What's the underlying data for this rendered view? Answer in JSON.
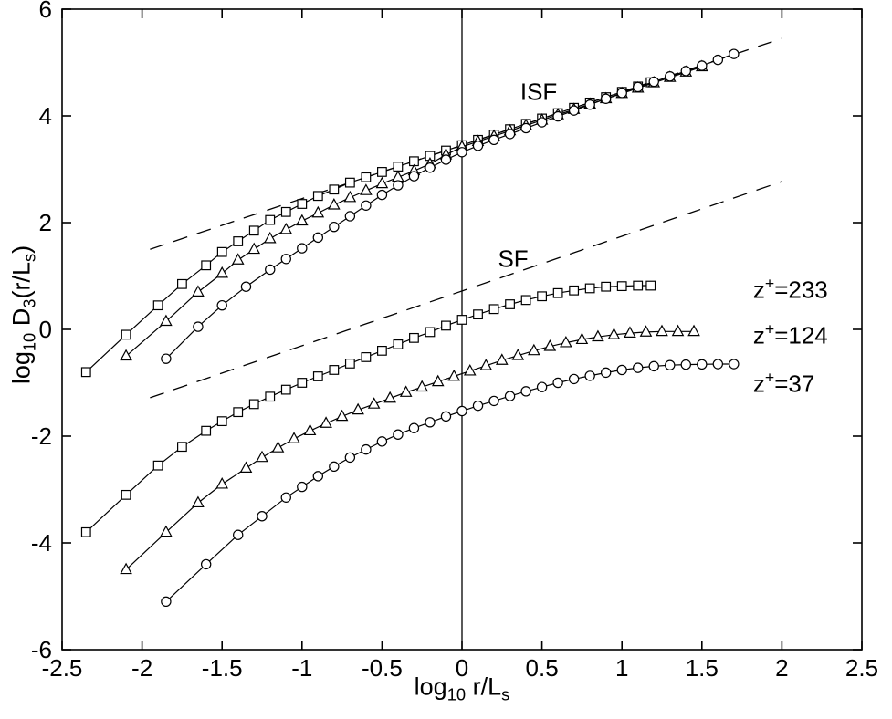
{
  "figure": {
    "background_color": "#ffffff",
    "axis_color": "#000000",
    "line_color": "#000000"
  },
  "chart_data": {
    "type": "line",
    "title": "",
    "xlabel_parts": {
      "t1": "log",
      "s1": "10",
      "t2": " r/L",
      "s2": "s"
    },
    "ylabel_parts": {
      "t1": "log",
      "s1": "10",
      "t2": " D",
      "s2": "3",
      "t3": "(r/L",
      "s3": "s",
      "t4": ")"
    },
    "xlim": [
      -2.5,
      2.5
    ],
    "ylim": [
      -6,
      6
    ],
    "xtick_values": [
      -2.5,
      -2,
      -1.5,
      -1,
      -0.5,
      0,
      0.5,
      1,
      1.5,
      2,
      2.5
    ],
    "xtick_labels": [
      "-2.5",
      "-2",
      "-1.5",
      "-1",
      "-0.5",
      "0",
      "0.5",
      "1",
      "1.5",
      "2",
      "2.5"
    ],
    "ytick_values": [
      -6,
      -4,
      -2,
      0,
      2,
      4,
      6
    ],
    "ytick_labels": [
      "-6",
      "-4",
      "-2",
      "0",
      "2",
      "4",
      "6"
    ],
    "grid": false,
    "legend_position": "none",
    "series": [
      {
        "name": "ISF z+=233",
        "group": "ISF",
        "marker": "square",
        "points": [
          [
            -2.35,
            -0.8
          ],
          [
            -2.1,
            -0.1
          ],
          [
            -1.9,
            0.45
          ],
          [
            -1.75,
            0.85
          ],
          [
            -1.6,
            1.2
          ],
          [
            -1.5,
            1.45
          ],
          [
            -1.4,
            1.65
          ],
          [
            -1.3,
            1.85
          ],
          [
            -1.2,
            2.05
          ],
          [
            -1.1,
            2.2
          ],
          [
            -1.0,
            2.35
          ],
          [
            -0.9,
            2.5
          ],
          [
            -0.8,
            2.62
          ],
          [
            -0.7,
            2.75
          ],
          [
            -0.6,
            2.85
          ],
          [
            -0.5,
            2.95
          ],
          [
            -0.4,
            3.05
          ],
          [
            -0.3,
            3.15
          ],
          [
            -0.2,
            3.25
          ],
          [
            -0.1,
            3.35
          ],
          [
            0.0,
            3.45
          ],
          [
            0.1,
            3.55
          ],
          [
            0.2,
            3.65
          ],
          [
            0.3,
            3.75
          ],
          [
            0.4,
            3.85
          ],
          [
            0.5,
            3.95
          ],
          [
            0.6,
            4.05
          ],
          [
            0.7,
            4.15
          ],
          [
            0.8,
            4.25
          ],
          [
            0.9,
            4.35
          ],
          [
            1.0,
            4.45
          ],
          [
            1.1,
            4.55
          ],
          [
            1.18,
            4.63
          ]
        ]
      },
      {
        "name": "ISF z+=124",
        "group": "ISF",
        "marker": "triangle",
        "points": [
          [
            -2.1,
            -0.5
          ],
          [
            -1.85,
            0.15
          ],
          [
            -1.65,
            0.7
          ],
          [
            -1.5,
            1.05
          ],
          [
            -1.4,
            1.3
          ],
          [
            -1.3,
            1.5
          ],
          [
            -1.2,
            1.7
          ],
          [
            -1.1,
            1.87
          ],
          [
            -1.0,
            2.03
          ],
          [
            -0.9,
            2.18
          ],
          [
            -0.8,
            2.33
          ],
          [
            -0.7,
            2.47
          ],
          [
            -0.6,
            2.6
          ],
          [
            -0.5,
            2.73
          ],
          [
            -0.4,
            2.85
          ],
          [
            -0.3,
            2.97
          ],
          [
            -0.2,
            3.1
          ],
          [
            -0.1,
            3.27
          ],
          [
            0.0,
            3.42
          ],
          [
            0.1,
            3.52
          ],
          [
            0.2,
            3.62
          ],
          [
            0.3,
            3.72
          ],
          [
            0.4,
            3.82
          ],
          [
            0.5,
            3.92
          ],
          [
            0.6,
            4.02
          ],
          [
            0.7,
            4.12
          ],
          [
            0.8,
            4.22
          ],
          [
            0.9,
            4.32
          ],
          [
            1.0,
            4.42
          ],
          [
            1.1,
            4.52
          ],
          [
            1.2,
            4.62
          ],
          [
            1.3,
            4.72
          ],
          [
            1.4,
            4.82
          ],
          [
            1.5,
            4.92
          ]
        ]
      },
      {
        "name": "ISF z+=37",
        "group": "ISF",
        "marker": "circle",
        "points": [
          [
            -1.85,
            -0.55
          ],
          [
            -1.65,
            0.05
          ],
          [
            -1.5,
            0.45
          ],
          [
            -1.35,
            0.8
          ],
          [
            -1.2,
            1.12
          ],
          [
            -1.1,
            1.32
          ],
          [
            -1.0,
            1.52
          ],
          [
            -0.9,
            1.72
          ],
          [
            -0.8,
            1.92
          ],
          [
            -0.7,
            2.12
          ],
          [
            -0.6,
            2.32
          ],
          [
            -0.5,
            2.52
          ],
          [
            -0.4,
            2.7
          ],
          [
            -0.3,
            2.87
          ],
          [
            -0.2,
            3.03
          ],
          [
            -0.1,
            3.18
          ],
          [
            0.0,
            3.32
          ],
          [
            0.1,
            3.44
          ],
          [
            0.2,
            3.55
          ],
          [
            0.3,
            3.66
          ],
          [
            0.4,
            3.77
          ],
          [
            0.5,
            3.88
          ],
          [
            0.6,
            3.99
          ],
          [
            0.7,
            4.1
          ],
          [
            0.8,
            4.21
          ],
          [
            0.9,
            4.32
          ],
          [
            1.0,
            4.43
          ],
          [
            1.1,
            4.54
          ],
          [
            1.2,
            4.64
          ],
          [
            1.3,
            4.74
          ],
          [
            1.4,
            4.84
          ],
          [
            1.5,
            4.94
          ],
          [
            1.6,
            5.05
          ],
          [
            1.7,
            5.16
          ]
        ]
      },
      {
        "name": "SF z+=233",
        "group": "SF",
        "marker": "square",
        "points": [
          [
            -2.35,
            -3.8
          ],
          [
            -2.1,
            -3.1
          ],
          [
            -1.9,
            -2.55
          ],
          [
            -1.75,
            -2.2
          ],
          [
            -1.6,
            -1.9
          ],
          [
            -1.5,
            -1.72
          ],
          [
            -1.4,
            -1.55
          ],
          [
            -1.3,
            -1.4
          ],
          [
            -1.2,
            -1.26
          ],
          [
            -1.1,
            -1.13
          ],
          [
            -1.0,
            -1.0
          ],
          [
            -0.9,
            -0.88
          ],
          [
            -0.8,
            -0.76
          ],
          [
            -0.7,
            -0.64
          ],
          [
            -0.6,
            -0.52
          ],
          [
            -0.5,
            -0.4
          ],
          [
            -0.4,
            -0.28
          ],
          [
            -0.3,
            -0.16
          ],
          [
            -0.2,
            -0.05
          ],
          [
            -0.1,
            0.07
          ],
          [
            0.0,
            0.18
          ],
          [
            0.1,
            0.28
          ],
          [
            0.2,
            0.38
          ],
          [
            0.3,
            0.47
          ],
          [
            0.4,
            0.55
          ],
          [
            0.5,
            0.62
          ],
          [
            0.6,
            0.68
          ],
          [
            0.7,
            0.73
          ],
          [
            0.8,
            0.77
          ],
          [
            0.9,
            0.8
          ],
          [
            1.0,
            0.81
          ],
          [
            1.1,
            0.82
          ],
          [
            1.18,
            0.82
          ]
        ]
      },
      {
        "name": "SF z+=124",
        "group": "SF",
        "marker": "triangle",
        "points": [
          [
            -2.1,
            -4.5
          ],
          [
            -1.85,
            -3.8
          ],
          [
            -1.65,
            -3.25
          ],
          [
            -1.5,
            -2.9
          ],
          [
            -1.35,
            -2.6
          ],
          [
            -1.25,
            -2.4
          ],
          [
            -1.15,
            -2.22
          ],
          [
            -1.05,
            -2.05
          ],
          [
            -0.95,
            -1.9
          ],
          [
            -0.85,
            -1.76
          ],
          [
            -0.75,
            -1.63
          ],
          [
            -0.65,
            -1.51
          ],
          [
            -0.55,
            -1.4
          ],
          [
            -0.45,
            -1.29
          ],
          [
            -0.35,
            -1.18
          ],
          [
            -0.25,
            -1.08
          ],
          [
            -0.15,
            -0.98
          ],
          [
            -0.05,
            -0.88
          ],
          [
            0.05,
            -0.78
          ],
          [
            0.15,
            -0.68
          ],
          [
            0.25,
            -0.58
          ],
          [
            0.35,
            -0.49
          ],
          [
            0.45,
            -0.4
          ],
          [
            0.55,
            -0.32
          ],
          [
            0.65,
            -0.25
          ],
          [
            0.75,
            -0.19
          ],
          [
            0.85,
            -0.14
          ],
          [
            0.95,
            -0.1
          ],
          [
            1.05,
            -0.07
          ],
          [
            1.15,
            -0.05
          ],
          [
            1.25,
            -0.04
          ],
          [
            1.35,
            -0.04
          ],
          [
            1.45,
            -0.04
          ]
        ]
      },
      {
        "name": "SF z+=37",
        "group": "SF",
        "marker": "circle",
        "points": [
          [
            -1.85,
            -5.1
          ],
          [
            -1.6,
            -4.4
          ],
          [
            -1.4,
            -3.85
          ],
          [
            -1.25,
            -3.5
          ],
          [
            -1.1,
            -3.15
          ],
          [
            -1.0,
            -2.95
          ],
          [
            -0.9,
            -2.75
          ],
          [
            -0.8,
            -2.57
          ],
          [
            -0.7,
            -2.4
          ],
          [
            -0.6,
            -2.25
          ],
          [
            -0.5,
            -2.1
          ],
          [
            -0.4,
            -1.97
          ],
          [
            -0.3,
            -1.85
          ],
          [
            -0.2,
            -1.74
          ],
          [
            -0.1,
            -1.63
          ],
          [
            0.0,
            -1.53
          ],
          [
            0.1,
            -1.43
          ],
          [
            0.2,
            -1.34
          ],
          [
            0.3,
            -1.25
          ],
          [
            0.4,
            -1.16
          ],
          [
            0.5,
            -1.08
          ],
          [
            0.6,
            -1.0
          ],
          [
            0.7,
            -0.93
          ],
          [
            0.8,
            -0.87
          ],
          [
            0.9,
            -0.81
          ],
          [
            1.0,
            -0.76
          ],
          [
            1.1,
            -0.72
          ],
          [
            1.2,
            -0.69
          ],
          [
            1.3,
            -0.67
          ],
          [
            1.4,
            -0.66
          ],
          [
            1.5,
            -0.655
          ],
          [
            1.6,
            -0.65
          ],
          [
            1.7,
            -0.65
          ]
        ]
      }
    ],
    "reference_lines": [
      {
        "name": "upper-dashed-slope1",
        "style": "dashed",
        "points": [
          [
            -1.95,
            1.5
          ],
          [
            2.0,
            5.45
          ]
        ]
      },
      {
        "name": "lower-dashed-slope1",
        "style": "dashed",
        "points": [
          [
            -1.95,
            -1.28
          ],
          [
            2.0,
            2.77
          ]
        ]
      },
      {
        "name": "vertical-zero-line",
        "style": "solid",
        "points": [
          [
            0,
            -6
          ],
          [
            0,
            6
          ]
        ]
      }
    ],
    "annotations": [
      {
        "name": "isf-label",
        "text": "ISF",
        "x": 0.48,
        "y": 4.45,
        "align": "center"
      },
      {
        "name": "sf-label",
        "text": "SF",
        "x": 0.32,
        "y": 1.32,
        "align": "center"
      },
      {
        "name": "z233-label",
        "base": "z",
        "sup": "+",
        "rest": "=233",
        "x": 1.82,
        "y": 0.75,
        "align": "left"
      },
      {
        "name": "z124-label",
        "base": "z",
        "sup": "+",
        "rest": "=124",
        "x": 1.82,
        "y": -0.1,
        "align": "left"
      },
      {
        "name": "z37-label",
        "base": "z",
        "sup": "+",
        "rest": "=37",
        "x": 1.82,
        "y": -1.0,
        "align": "left"
      }
    ]
  }
}
